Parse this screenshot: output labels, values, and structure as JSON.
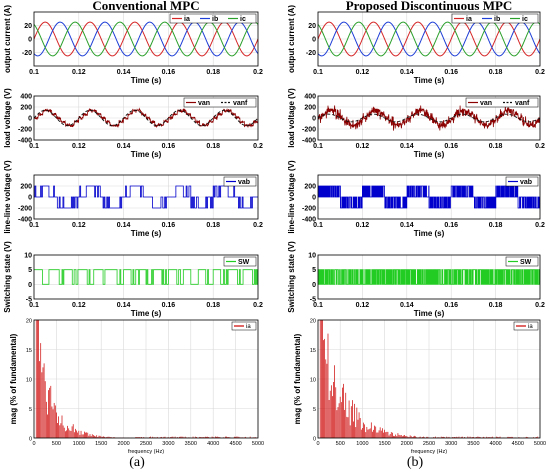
{
  "figure": {
    "captions": [
      "(a)",
      "(b)"
    ],
    "colors": {
      "ia": "#d62728",
      "ib": "#1f3fd6",
      "ic": "#2ca02c",
      "van": "#8b0000",
      "vanf": "#111111",
      "vab": "#0000cc",
      "sw": "#22cc22",
      "fft": "#cc0000",
      "grid": "#d9d9d9"
    }
  },
  "chart_data": [
    {
      "column": "a",
      "title": "Conventional MPC",
      "type": "line",
      "ylabel": "output current (A)",
      "xlabel": "Time (s)",
      "xlim": [
        0.1,
        0.2
      ],
      "ylim": [
        -40,
        40
      ],
      "xticks": [
        "0.1",
        "0.12",
        "0.14",
        "0.16",
        "0.18",
        "0.2"
      ],
      "yticks": [
        "-20",
        "0",
        "20"
      ],
      "series": [
        {
          "name": "ia",
          "amplitude": 25,
          "frequency_hz": 50,
          "phase_deg": 0
        },
        {
          "name": "ib",
          "amplitude": 25,
          "frequency_hz": 50,
          "phase_deg": -120
        },
        {
          "name": "ic",
          "amplitude": 25,
          "frequency_hz": 50,
          "phase_deg": 120
        }
      ]
    },
    {
      "column": "a",
      "type": "line",
      "ylabel": "load voltage (V)",
      "xlabel": "Time (s)",
      "xlim": [
        0.1,
        0.2
      ],
      "ylim": [
        -400,
        400
      ],
      "xticks": [
        "0.1",
        "0.12",
        "0.14",
        "0.16",
        "0.18",
        "0.2"
      ],
      "yticks": [
        "-400",
        "-200",
        "0",
        "200",
        "400"
      ],
      "series": [
        {
          "name": "van",
          "step_levels": [
            0,
            67,
            133,
            133,
            67,
            0,
            -67,
            -133,
            -133,
            -67
          ],
          "frequency_hz": 50,
          "ripple": 15
        },
        {
          "name": "vanf",
          "amplitude": 140,
          "frequency_hz": 50
        }
      ]
    },
    {
      "column": "a",
      "type": "line",
      "ylabel": "line-line voltage (V)",
      "xlabel": "Time (s)",
      "xlim": [
        0.1,
        0.2
      ],
      "ylim": [
        -400,
        400
      ],
      "xticks": [
        "0.1",
        "0.12",
        "0.14",
        "0.16",
        "0.18",
        "0.2"
      ],
      "yticks": [
        "-400",
        "-200",
        "0",
        "200"
      ],
      "series": [
        {
          "name": "vab",
          "levels": [
            -200,
            0,
            200
          ],
          "frequency_hz": 50,
          "switching": "regular"
        }
      ]
    },
    {
      "column": "a",
      "type": "line",
      "ylabel": "Switching state (V)",
      "xlabel": "Time (s)",
      "xlim": [
        0.1,
        0.2
      ],
      "ylim": [
        -5,
        10
      ],
      "xticks": [
        "0.1",
        "0.12",
        "0.14",
        "0.16",
        "0.18",
        "0.2"
      ],
      "yticks": [
        "-5",
        "0",
        "5",
        "10"
      ],
      "series": [
        {
          "name": "SW",
          "levels": [
            0,
            5
          ],
          "frequency_hz": 50,
          "switching": "regular"
        }
      ]
    },
    {
      "column": "a",
      "type": "bar",
      "ylabel": "mag (% of fundamental)",
      "xlabel": "frequency (Hz)",
      "xlim": [
        0,
        5000
      ],
      "ylim": [
        0,
        20
      ],
      "xticks": [
        "0",
        "500",
        "1000",
        "1500",
        "2000",
        "2500",
        "3000",
        "3500",
        "4000",
        "4500",
        "5000"
      ],
      "yticks": [
        "0",
        "5",
        "10",
        "15",
        "20"
      ],
      "series": [
        {
          "name": "ia",
          "shape": "harmonic spectrum, peaks near 100-400 Hz up to 20%, decaying to ~0 by 1500 Hz"
        }
      ]
    },
    {
      "column": "b",
      "title": "Proposed Discontinuous MPC",
      "type": "line",
      "ylabel": "output current (A)",
      "xlabel": "Time (s)",
      "xlim": [
        0.1,
        0.2
      ],
      "ylim": [
        -40,
        40
      ],
      "xticks": [
        "0.1",
        "0.12",
        "0.14",
        "0.16",
        "0.18",
        "0.2"
      ],
      "yticks": [
        "-20",
        "0",
        "20"
      ],
      "series": [
        {
          "name": "ia",
          "amplitude": 25,
          "frequency_hz": 50,
          "phase_deg": 0
        },
        {
          "name": "ib",
          "amplitude": 25,
          "frequency_hz": 50,
          "phase_deg": -120
        },
        {
          "name": "ic",
          "amplitude": 25,
          "frequency_hz": 50,
          "phase_deg": 120
        }
      ]
    },
    {
      "column": "b",
      "type": "line",
      "ylabel": "load voltage (V)",
      "xlabel": "Time (s)",
      "xlim": [
        0.1,
        0.2
      ],
      "ylim": [
        -400,
        400
      ],
      "xticks": [
        "0.1",
        "0.12",
        "0.14",
        "0.16",
        "0.18",
        "0.2"
      ],
      "yticks": [
        "-400",
        "-200",
        "0",
        "200",
        "400"
      ],
      "series": [
        {
          "name": "van",
          "step_levels": [
            0,
            67,
            133,
            133,
            67,
            0,
            -67,
            -133,
            -133,
            -67
          ],
          "frequency_hz": 50,
          "ripple": 40
        },
        {
          "name": "vanf",
          "amplitude": 70,
          "frequency_hz": 50
        }
      ]
    },
    {
      "column": "b",
      "type": "line",
      "ylabel": "line-line voltage (V)",
      "xlabel": "Time (s)",
      "xlim": [
        0.1,
        0.2
      ],
      "ylim": [
        -400,
        400
      ],
      "xticks": [
        "0.1",
        "0.12",
        "0.14",
        "0.16",
        "0.18",
        "0.2"
      ],
      "yticks": [
        "-400",
        "-200",
        "0",
        "200"
      ],
      "series": [
        {
          "name": "vab",
          "levels": [
            -200,
            0,
            200
          ],
          "frequency_hz": 50,
          "switching": "dense"
        }
      ]
    },
    {
      "column": "b",
      "type": "line",
      "ylabel": "Switching state (V)",
      "xlabel": "Time (s)",
      "xlim": [
        0.1,
        0.2
      ],
      "ylim": [
        -5,
        10
      ],
      "xticks": [
        "0.1",
        "0.12",
        "0.14",
        "0.16",
        "0.18",
        "0.2"
      ],
      "yticks": [
        "-5",
        "0",
        "5",
        "10"
      ],
      "series": [
        {
          "name": "SW",
          "levels": [
            0,
            5
          ],
          "frequency_hz": 50,
          "switching": "dense"
        }
      ]
    },
    {
      "column": "b",
      "type": "bar",
      "ylabel": "mag (% of fundamental)",
      "xlabel": "frequency (Hz)",
      "xlim": [
        0,
        5000
      ],
      "ylim": [
        0,
        20
      ],
      "xticks": [
        "0",
        "500",
        "1000",
        "1500",
        "2000",
        "2500",
        "3000",
        "3500",
        "4000",
        "4500",
        "5000"
      ],
      "yticks": [
        "0",
        "5",
        "10",
        "15",
        "20"
      ],
      "series": [
        {
          "name": "ia",
          "shape": "harmonic spectrum, peaks near 100-400 Hz up to 20%, decaying to ~0 by 2000 Hz"
        }
      ]
    }
  ]
}
